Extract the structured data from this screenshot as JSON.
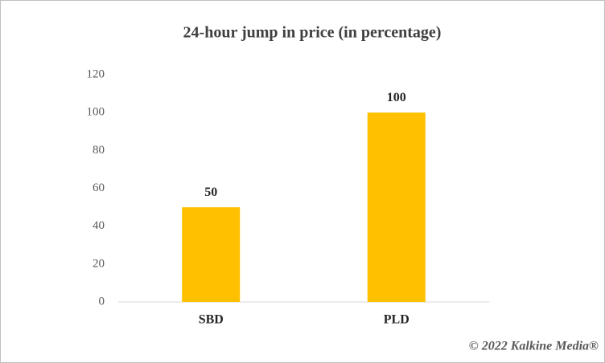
{
  "chart_data": {
    "type": "bar",
    "title": "24-hour jump in price (in percentage)",
    "categories": [
      "SBD",
      "PLD"
    ],
    "values": [
      50,
      100
    ],
    "color": "#ffc000",
    "ylim": [
      0,
      120
    ],
    "yticks": [
      0,
      20,
      40,
      60,
      80,
      100,
      120
    ],
    "grid": false,
    "data_labels": true,
    "credit": "© 2022 Kalkine Media®"
  }
}
